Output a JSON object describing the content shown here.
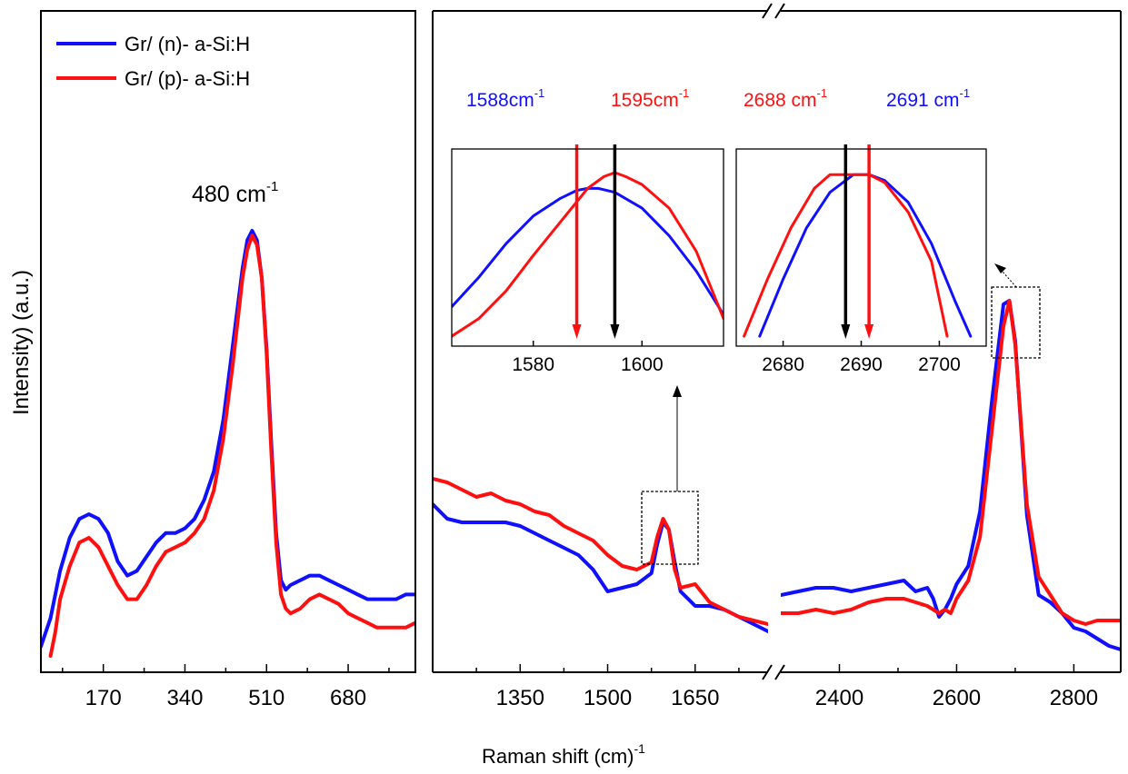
{
  "chart_data": [
    {
      "type": "line",
      "panel": "left",
      "xlabel": "Raman shift (cm)",
      "xlabel_sup": "-1",
      "ylabel": "Intensity) (a.u.)",
      "xlim": [
        40,
        820
      ],
      "ylim": [
        0,
        100
      ],
      "xticks": [
        170,
        340,
        510,
        680
      ],
      "peak_label": "480 cm",
      "peak_label_sup": "-1",
      "legend": [
        {
          "name": "Gr/ (n)- a-Si:H",
          "color": "#1010ff"
        },
        {
          "name": "Gr/ (p)- a-Si:H",
          "color": "#ff1010"
        }
      ],
      "series": [
        {
          "name": "Gr/ (n)- a-Si:H",
          "color": "#1010ff",
          "x": [
            40,
            60,
            80,
            100,
            120,
            140,
            160,
            180,
            200,
            220,
            240,
            260,
            280,
            300,
            320,
            340,
            360,
            380,
            400,
            420,
            440,
            460,
            470,
            480,
            490,
            500,
            510,
            520,
            530,
            540,
            550,
            560,
            580,
            600,
            620,
            640,
            660,
            680,
            700,
            720,
            740,
            760,
            780,
            800,
            820
          ],
          "y": [
            2,
            8,
            18,
            25,
            29,
            30,
            29,
            26,
            20,
            17,
            18,
            21,
            24,
            26,
            26,
            27,
            29,
            33,
            39,
            50,
            66,
            82,
            88,
            90,
            88,
            80,
            65,
            45,
            26,
            16,
            14,
            15,
            16,
            17,
            17,
            16,
            15,
            14,
            13,
            12,
            12,
            12,
            12,
            13,
            13
          ]
        },
        {
          "name": "Gr/ (p)- a-Si:H",
          "color": "#ff1010",
          "x": [
            60,
            70,
            80,
            100,
            120,
            140,
            160,
            180,
            200,
            220,
            240,
            260,
            280,
            300,
            320,
            340,
            360,
            380,
            400,
            420,
            440,
            460,
            470,
            480,
            490,
            500,
            510,
            520,
            530,
            540,
            550,
            560,
            580,
            600,
            620,
            640,
            660,
            680,
            700,
            720,
            740,
            760,
            780,
            800,
            820
          ],
          "y": [
            0,
            5,
            12,
            19,
            24,
            25,
            23,
            19,
            15,
            12,
            12,
            15,
            19,
            22,
            23,
            24,
            26,
            29,
            35,
            46,
            62,
            80,
            86,
            89,
            87,
            80,
            64,
            43,
            24,
            13,
            10,
            9,
            10,
            12,
            13,
            12,
            11,
            9,
            8,
            7,
            6,
            6,
            6,
            6,
            7
          ]
        }
      ]
    },
    {
      "type": "line",
      "panel": "right",
      "broken_x_axis": true,
      "xlim_segments": [
        [
          1200,
          1775
        ],
        [
          2300,
          2880
        ]
      ],
      "ylim": [
        0,
        100
      ],
      "xticks": [
        1350,
        1500,
        1650,
        2400,
        2600,
        2800
      ],
      "series": [
        {
          "name": "Gr/ (n)- a-Si:H",
          "color": "#1010ff",
          "x": [
            1200,
            1225,
            1250,
            1275,
            1300,
            1325,
            1350,
            1375,
            1400,
            1425,
            1450,
            1475,
            1500,
            1525,
            1550,
            1575,
            1585,
            1595,
            1605,
            1615,
            1625,
            1650,
            1675,
            1700,
            1725,
            1750,
            1775,
            2300,
            2330,
            2360,
            2390,
            2420,
            2450,
            2480,
            2510,
            2530,
            2550,
            2560,
            2570,
            2580,
            2590,
            2600,
            2620,
            2640,
            2660,
            2680,
            2690,
            2700,
            2720,
            2740,
            2760,
            2780,
            2800,
            2820,
            2840,
            2860,
            2880
          ],
          "y": [
            35,
            31,
            30,
            30,
            30,
            30,
            29,
            27,
            25,
            23,
            21,
            17,
            11,
            12,
            13,
            16,
            24,
            30,
            28,
            19,
            11,
            7,
            7,
            6,
            4,
            2,
            0,
            10,
            11,
            12,
            12,
            11,
            12,
            13,
            14,
            11,
            12,
            9,
            4,
            6,
            9,
            13,
            18,
            33,
            63,
            90,
            91,
            80,
            32,
            10,
            8,
            5,
            1,
            0,
            -2,
            -4,
            -5
          ]
        },
        {
          "name": "Gr/ (p)- a-Si:H",
          "color": "#ff1010",
          "x": [
            1200,
            1225,
            1250,
            1275,
            1300,
            1325,
            1350,
            1375,
            1400,
            1425,
            1450,
            1475,
            1500,
            1525,
            1550,
            1575,
            1585,
            1595,
            1605,
            1615,
            1625,
            1650,
            1675,
            1700,
            1725,
            1750,
            1775,
            2300,
            2330,
            2360,
            2390,
            2420,
            2450,
            2480,
            2510,
            2530,
            2550,
            2560,
            2570,
            2580,
            2590,
            2600,
            2620,
            2640,
            2660,
            2680,
            2690,
            2700,
            2720,
            2740,
            2760,
            2780,
            2800,
            2820,
            2840,
            2860,
            2880
          ],
          "y": [
            42,
            41,
            39,
            37,
            38,
            36,
            35,
            33,
            32,
            29,
            27,
            25,
            21,
            18,
            17,
            19,
            26,
            31,
            28,
            17,
            12,
            13,
            8,
            6,
            4,
            3,
            2,
            5,
            5,
            6,
            5,
            6,
            8,
            9,
            9,
            8,
            7,
            6,
            5,
            6,
            5,
            9,
            14,
            26,
            55,
            84,
            91,
            79,
            35,
            15,
            10,
            5,
            3,
            2,
            3,
            3,
            3
          ]
        }
      ]
    },
    {
      "type": "line",
      "panel": "inset-G",
      "xlim": [
        1565,
        1615
      ],
      "ylim": [
        0,
        100
      ],
      "xticks": [
        1580,
        1600
      ],
      "arrow_label_blue": "1588cm",
      "arrow_label_red": "1595cm",
      "label_sup": "-1",
      "markers": [
        {
          "name": "red-arrow",
          "x": 1588,
          "color": "#ff1010"
        },
        {
          "name": "black-arrow",
          "x": 1595,
          "color": "#000000"
        }
      ],
      "series": [
        {
          "name": "Gr/ (n)- a-Si:H",
          "color": "#1010ff",
          "x": [
            1565,
            1570,
            1575,
            1580,
            1585,
            1588,
            1590,
            1592,
            1595,
            1600,
            1605,
            1610,
            1615
          ],
          "y": [
            20,
            35,
            52,
            66,
            75,
            79,
            80,
            80,
            78,
            70,
            56,
            38,
            16
          ]
        },
        {
          "name": "Gr/ (p)- a-Si:H",
          "color": "#ff1010",
          "x": [
            1565,
            1570,
            1575,
            1580,
            1585,
            1590,
            1593,
            1595,
            1597,
            1600,
            1605,
            1610,
            1615
          ],
          "y": [
            5,
            14,
            28,
            46,
            63,
            80,
            86,
            88,
            86,
            82,
            70,
            48,
            14
          ]
        }
      ]
    },
    {
      "type": "line",
      "panel": "inset-2D",
      "xlim": [
        2674,
        2706
      ],
      "ylim": [
        0,
        100
      ],
      "xticks": [
        2680,
        2690,
        2700
      ],
      "arrow_label_red": "2688 cm",
      "arrow_label_blue": "2691 cm",
      "label_sup": "-1",
      "markers": [
        {
          "name": "black-arrow",
          "x": 2688,
          "color": "#000000"
        },
        {
          "name": "red-arrow",
          "x": 2691,
          "color": "#ff1010"
        }
      ],
      "series": [
        {
          "name": "Gr/ (n)- a-Si:H",
          "color": "#1010ff",
          "x": [
            2677,
            2680,
            2683,
            2686,
            2689,
            2691,
            2693,
            2696,
            2699,
            2702,
            2704
          ],
          "y": [
            5,
            34,
            60,
            78,
            87,
            87,
            84,
            73,
            52,
            23,
            5
          ]
        },
        {
          "name": "Gr/ (p)- a-Si:H",
          "color": "#ff1010",
          "x": [
            2675,
            2678,
            2681,
            2684,
            2686,
            2688,
            2691,
            2693,
            2696,
            2699,
            2701
          ],
          "y": [
            5,
            34,
            60,
            80,
            87,
            87,
            87,
            83,
            68,
            43,
            5
          ]
        }
      ]
    }
  ]
}
